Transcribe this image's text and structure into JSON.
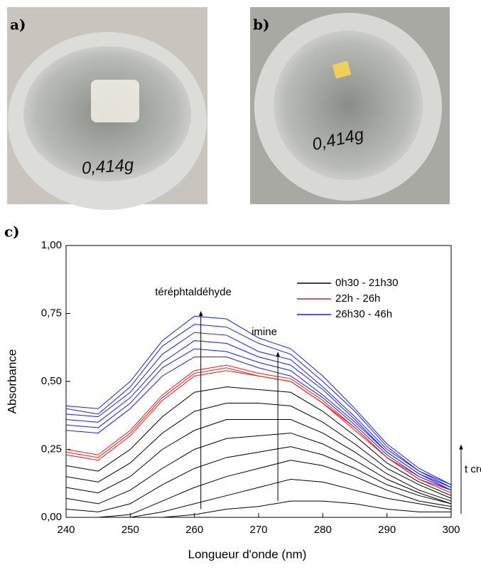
{
  "panels": [
    {
      "label": "a)",
      "note": "0,414g"
    },
    {
      "label": "b)",
      "note": "0,414g"
    }
  ],
  "chart_data": {
    "type": "line",
    "panel_label": "c)",
    "x": [
      240,
      245,
      250,
      255,
      260,
      265,
      270,
      275,
      280,
      285,
      290,
      295,
      300
    ],
    "series": [
      {
        "name": "0h30 - 21h30",
        "color": "#000000",
        "values": [
          [
            0.19,
            0.17,
            0.25,
            0.37,
            0.46,
            0.48,
            0.47,
            0.46,
            0.39,
            0.3,
            0.2,
            0.13,
            0.08
          ],
          [
            0.15,
            0.13,
            0.2,
            0.31,
            0.39,
            0.42,
            0.42,
            0.41,
            0.35,
            0.27,
            0.18,
            0.12,
            0.07
          ],
          [
            0.11,
            0.09,
            0.15,
            0.25,
            0.32,
            0.36,
            0.36,
            0.36,
            0.31,
            0.24,
            0.16,
            0.1,
            0.06
          ],
          [
            0.07,
            0.05,
            0.1,
            0.18,
            0.25,
            0.29,
            0.3,
            0.31,
            0.27,
            0.21,
            0.14,
            0.09,
            0.05
          ],
          [
            0.03,
            0.02,
            0.05,
            0.12,
            0.18,
            0.22,
            0.24,
            0.26,
            0.23,
            0.18,
            0.12,
            0.08,
            0.05
          ],
          [
            0.0,
            0.0,
            0.01,
            0.06,
            0.11,
            0.15,
            0.18,
            0.21,
            0.19,
            0.15,
            0.1,
            0.06,
            0.04
          ],
          [
            0.0,
            0.0,
            0.0,
            0.02,
            0.05,
            0.08,
            0.11,
            0.14,
            0.13,
            0.1,
            0.07,
            0.05,
            0.03
          ],
          [
            0.0,
            0.0,
            0.0,
            0.0,
            0.01,
            0.03,
            0.04,
            0.06,
            0.06,
            0.05,
            0.03,
            0.02,
            0.02
          ]
        ]
      },
      {
        "name": "22h - 26h",
        "color": "#e8191c",
        "values": [
          [
            0.25,
            0.23,
            0.32,
            0.45,
            0.54,
            0.56,
            0.53,
            0.51,
            0.43,
            0.33,
            0.22,
            0.15,
            0.1
          ],
          [
            0.24,
            0.22,
            0.31,
            0.44,
            0.53,
            0.55,
            0.52,
            0.5,
            0.42,
            0.33,
            0.22,
            0.14,
            0.1
          ],
          [
            0.23,
            0.21,
            0.3,
            0.43,
            0.52,
            0.54,
            0.52,
            0.5,
            0.42,
            0.32,
            0.22,
            0.14,
            0.09
          ]
        ]
      },
      {
        "name": "26h30 - 46h",
        "color": "#1a1aff",
        "values": [
          [
            0.41,
            0.4,
            0.5,
            0.65,
            0.74,
            0.73,
            0.66,
            0.62,
            0.52,
            0.4,
            0.27,
            0.18,
            0.12
          ],
          [
            0.4,
            0.38,
            0.48,
            0.63,
            0.71,
            0.7,
            0.64,
            0.6,
            0.5,
            0.39,
            0.26,
            0.17,
            0.12
          ],
          [
            0.38,
            0.37,
            0.46,
            0.6,
            0.68,
            0.67,
            0.61,
            0.58,
            0.48,
            0.37,
            0.25,
            0.17,
            0.11
          ],
          [
            0.36,
            0.35,
            0.44,
            0.57,
            0.65,
            0.64,
            0.59,
            0.56,
            0.47,
            0.36,
            0.24,
            0.16,
            0.11
          ],
          [
            0.34,
            0.33,
            0.42,
            0.55,
            0.62,
            0.61,
            0.57,
            0.54,
            0.45,
            0.35,
            0.24,
            0.16,
            0.1
          ],
          [
            0.32,
            0.31,
            0.4,
            0.52,
            0.59,
            0.59,
            0.55,
            0.52,
            0.44,
            0.34,
            0.23,
            0.15,
            0.1
          ]
        ]
      }
    ],
    "xlim": [
      240,
      300
    ],
    "xticks": [
      240,
      250,
      260,
      270,
      280,
      290,
      300
    ],
    "ylim": [
      0,
      1
    ],
    "yticks": [
      {
        "value": 0,
        "label": "0,00"
      },
      {
        "value": 0.25,
        "label": "0,25"
      },
      {
        "value": 0.5,
        "label": "0,50"
      },
      {
        "value": 0.75,
        "label": "0,75"
      },
      {
        "value": 1,
        "label": "1,00"
      }
    ],
    "xlabel": "Longueur d'onde (nm)",
    "ylabel": "Absorbance",
    "annotations": [
      "téréphtaldéhyde",
      "imine",
      "t croit"
    ],
    "legend": "upper right"
  }
}
